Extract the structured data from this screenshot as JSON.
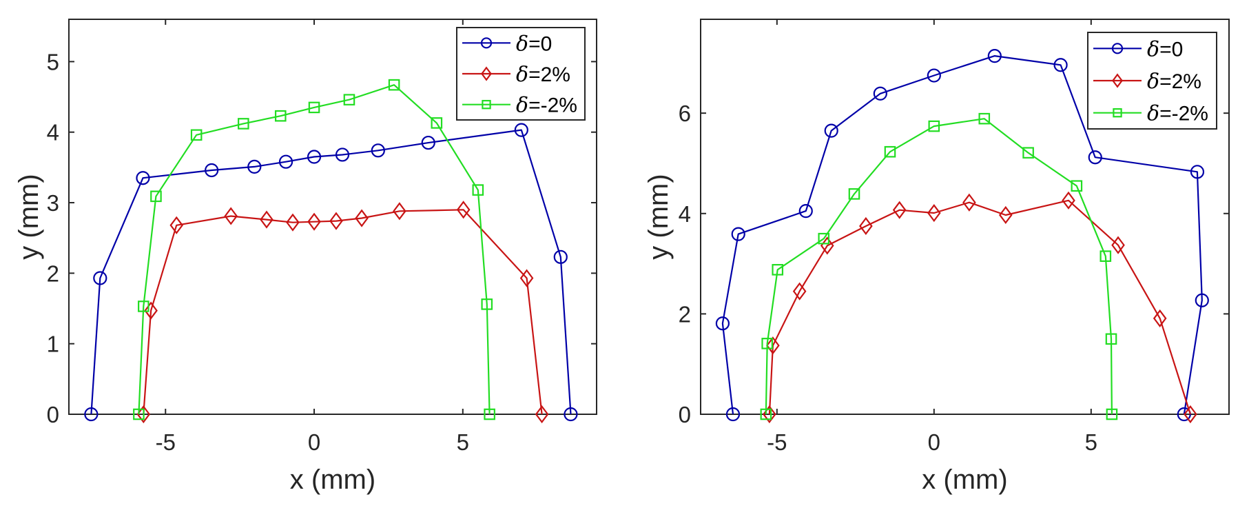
{
  "chart_data": [
    {
      "type": "line",
      "title": "",
      "xlabel": "x (mm)",
      "ylabel": "y (mm)",
      "xlim": [
        -8.25,
        9.5
      ],
      "ylim": [
        0,
        5.6
      ],
      "xticks": [
        -5,
        0,
        5
      ],
      "xtick_labels": [
        "-5",
        "0",
        "5"
      ],
      "yticks": [
        0,
        1,
        2,
        3,
        4,
        5
      ],
      "ytick_labels": [
        "0",
        "1",
        "2",
        "3",
        "4",
        "5"
      ],
      "grid": false,
      "legend_position": "top-right",
      "series": [
        {
          "name": "δ=0",
          "delta_symbol": "δ",
          "label_suffix": "=0",
          "color": "#0000a8",
          "marker": "circle",
          "x": [
            -7.5,
            -7.2,
            -5.76,
            -3.45,
            -2.01,
            -0.95,
            0.0,
            0.95,
            2.15,
            3.84,
            6.97,
            8.29,
            8.63
          ],
          "y": [
            0.0,
            1.93,
            3.35,
            3.46,
            3.51,
            3.58,
            3.65,
            3.68,
            3.74,
            3.85,
            4.03,
            2.23,
            0.0
          ]
        },
        {
          "name": "δ=2%",
          "delta_symbol": "δ",
          "label_suffix": "=2%",
          "color": "#c81414",
          "marker": "diamond",
          "x": [
            -5.74,
            -5.49,
            -4.63,
            -2.8,
            -1.6,
            -0.72,
            0.0,
            0.74,
            1.6,
            2.87,
            5.02,
            7.15,
            7.66
          ],
          "y": [
            0.0,
            1.47,
            2.68,
            2.81,
            2.76,
            2.72,
            2.73,
            2.74,
            2.78,
            2.88,
            2.9,
            1.93,
            0.0
          ]
        },
        {
          "name": "δ=-2%",
          "delta_symbol": "δ",
          "label_suffix": "=-2%",
          "color": "#22dd22",
          "marker": "square",
          "x": [
            -5.9,
            -5.74,
            -5.32,
            -3.96,
            -2.38,
            -1.13,
            0.0,
            1.18,
            2.69,
            4.12,
            5.51,
            5.81,
            5.9
          ],
          "y": [
            0.0,
            1.53,
            3.09,
            3.96,
            4.12,
            4.23,
            4.35,
            4.46,
            4.67,
            4.13,
            3.18,
            1.56,
            0.0
          ]
        }
      ]
    },
    {
      "type": "line",
      "title": "",
      "xlabel": "x (mm)",
      "ylabel": "y (mm)",
      "xlim": [
        -7.43,
        9.39
      ],
      "ylim": [
        0,
        7.87
      ],
      "xticks": [
        -5,
        0,
        5
      ],
      "xtick_labels": [
        "-5",
        "0",
        "5"
      ],
      "yticks": [
        0,
        2,
        4,
        6
      ],
      "ytick_labels": [
        "0",
        "2",
        "4",
        "6"
      ],
      "grid": false,
      "legend_position": "top-right",
      "series": [
        {
          "name": "δ=0",
          "delta_symbol": "δ",
          "label_suffix": "=0",
          "color": "#0000a8",
          "marker": "circle",
          "x": [
            -6.4,
            -6.73,
            -6.23,
            -4.08,
            -3.27,
            -1.71,
            0.0,
            1.93,
            4.03,
            5.13,
            8.38,
            8.53,
            7.96
          ],
          "y": [
            0.0,
            1.81,
            3.59,
            4.05,
            5.65,
            6.39,
            6.75,
            7.14,
            6.96,
            5.12,
            4.83,
            2.27,
            0.0
          ]
        },
        {
          "name": "δ=2%",
          "delta_symbol": "δ",
          "label_suffix": "=2%",
          "color": "#c81414",
          "marker": "diamond",
          "x": [
            -5.24,
            -5.13,
            -4.28,
            -3.4,
            -2.17,
            -1.1,
            0.0,
            1.12,
            2.28,
            4.28,
            5.86,
            7.19,
            8.16
          ],
          "y": [
            0.0,
            1.37,
            2.45,
            3.36,
            3.75,
            4.07,
            4.01,
            4.22,
            3.97,
            4.26,
            3.37,
            1.91,
            0.0
          ]
        },
        {
          "name": "δ=-2%",
          "delta_symbol": "δ",
          "label_suffix": "=-2%",
          "color": "#22dd22",
          "marker": "square",
          "x": [
            -5.35,
            -5.31,
            -4.98,
            -3.51,
            -2.54,
            -1.4,
            0.0,
            1.6,
            3.0,
            4.54,
            5.46,
            5.64,
            5.66
          ],
          "y": [
            0.0,
            1.41,
            2.88,
            3.5,
            4.39,
            5.23,
            5.74,
            5.89,
            5.21,
            4.55,
            3.15,
            1.5,
            0.0
          ]
        }
      ]
    }
  ]
}
